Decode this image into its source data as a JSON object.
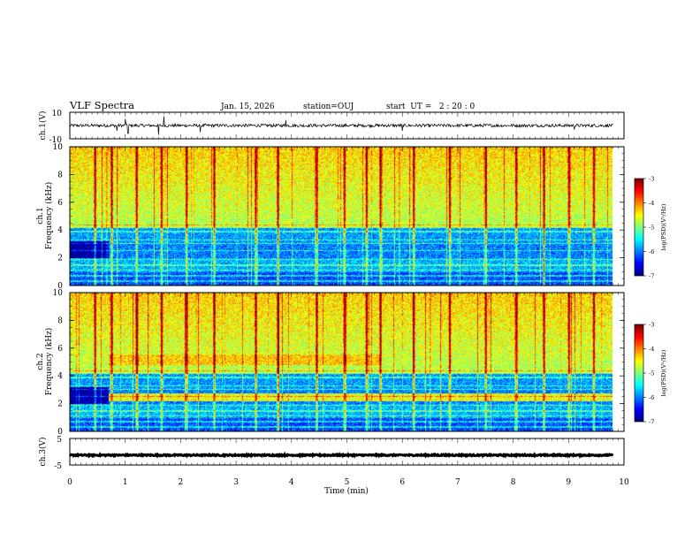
{
  "header": {
    "title": "VLF Spectra",
    "date": "Jan. 15, 2026",
    "station": "station=OUJ",
    "start_time": "start  UT =   2 : 20 : 0"
  },
  "chart_data": [
    {
      "type": "line",
      "name": "ch1-waveform",
      "ylabel": "ch.1(V)",
      "ylim": [
        -10,
        10
      ],
      "ytick_labels": [
        "10",
        "-10"
      ],
      "baseline": 0,
      "noise_amplitude": 1.2,
      "spikes": [
        {
          "x": 0.85,
          "y": -4
        },
        {
          "x": 1.0,
          "y": 5
        },
        {
          "x": 1.05,
          "y": -6
        },
        {
          "x": 1.6,
          "y": -7
        },
        {
          "x": 1.7,
          "y": 7
        },
        {
          "x": 2.35,
          "y": -5
        },
        {
          "x": 3.9,
          "y": 4
        },
        {
          "x": 6.0,
          "y": -4
        },
        {
          "x": 9.1,
          "y": -3
        }
      ]
    },
    {
      "type": "heatmap",
      "name": "ch1-spectrogram",
      "ylabel": "ch.1\nFrequency (kHz)",
      "ylabel_lines": [
        "ch.1",
        "Frequency (kHz)"
      ],
      "ylim": [
        0,
        10
      ],
      "ytick_labels": [
        "0",
        "2",
        "4",
        "6",
        "8",
        "10"
      ],
      "clim": [
        -7,
        -3
      ],
      "colorbar_ticks": [
        "-3",
        "-4",
        "-5",
        "-6",
        "-7"
      ],
      "colorbar_label": "log(PSD)(V²/Hz)",
      "time_segments": [
        {
          "from": 0,
          "to": 0.7,
          "upper_level": -4.7,
          "low_band_2_3": -6.9
        },
        {
          "from": 0.7,
          "to": 5.6,
          "upper_level": -4.6,
          "low_band_2_3": -6.2
        },
        {
          "from": 5.6,
          "to": 9.8,
          "upper_level": -4.8,
          "low_band_2_3": -6.2
        }
      ],
      "sferic_times": [
        0.45,
        0.75,
        1.2,
        1.65,
        2.1,
        2.6,
        3.35,
        3.75,
        4.45,
        4.95,
        5.35,
        5.6,
        6.2,
        6.85,
        7.5,
        8.05,
        8.55,
        9.0,
        9.45
      ]
    },
    {
      "type": "heatmap",
      "name": "ch2-spectrogram",
      "ylabel": "ch.2\nFrequency (kHz)",
      "ylabel_lines": [
        "ch.2",
        "Frequency (kHz)"
      ],
      "ylim": [
        0,
        10
      ],
      "ytick_labels": [
        "0",
        "2",
        "4",
        "6",
        "8",
        "10"
      ],
      "clim": [
        -7,
        -3
      ],
      "colorbar_ticks": [
        "-3",
        "-4",
        "-5",
        "-6",
        "-7"
      ],
      "colorbar_label": "log(PSD)(V²/Hz)",
      "emission_bands": [
        {
          "f_low": 4.8,
          "f_high": 5.6,
          "from": 0.7,
          "to": 5.6,
          "level": -4.3
        },
        {
          "f_low": 2.2,
          "f_high": 2.8,
          "from": 0.7,
          "to": 9.8,
          "level": -4.6
        }
      ],
      "sferic_times": [
        0.45,
        0.75,
        1.2,
        1.65,
        2.1,
        2.6,
        3.35,
        3.75,
        4.45,
        4.95,
        5.35,
        5.6,
        6.2,
        6.85,
        7.5,
        8.05,
        8.55,
        9.0,
        9.45
      ]
    },
    {
      "type": "line",
      "name": "ch3-waveform",
      "ylabel": "ch.3(V)",
      "ylim": [
        -5,
        5
      ],
      "ytick_labels": [
        "5",
        "-5"
      ],
      "baseline": -1.3,
      "noise_amplitude": 0.25
    }
  ],
  "xaxis": {
    "label": "Time (min)",
    "range": [
      0,
      10
    ],
    "data_end": 9.8,
    "tick_labels": [
      "0",
      "1",
      "2",
      "3",
      "4",
      "5",
      "6",
      "7",
      "8",
      "9",
      "10"
    ]
  }
}
